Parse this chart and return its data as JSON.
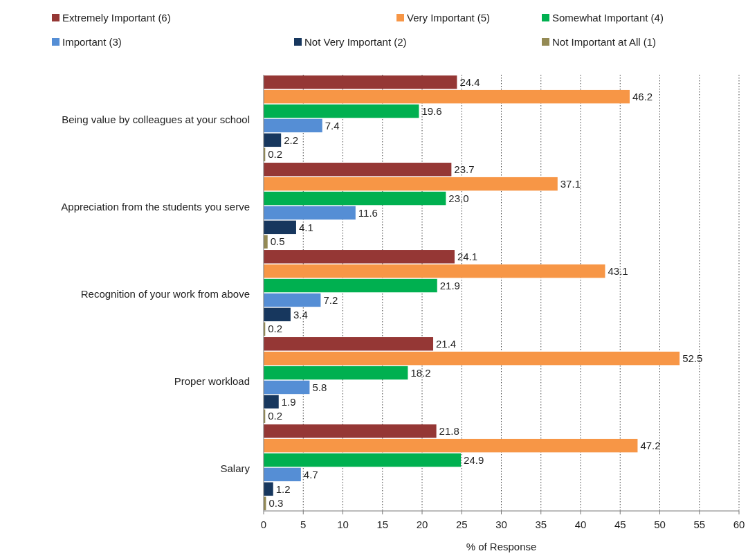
{
  "chart_data": {
    "type": "bar",
    "orientation": "horizontal",
    "xlabel": "% of Response",
    "categories": [
      "Being value by colleagues at your school",
      "Appreciation from the students you serve",
      "Recognition of your work from above",
      "Proper workload",
      "Salary"
    ],
    "series": [
      {
        "name": "Extremely Important (6)",
        "color": "#953735",
        "values": [
          24.4,
          23.7,
          24.1,
          21.4,
          21.8
        ],
        "value_labels": [
          "24.4",
          "23.7",
          "24.1",
          "21.4",
          "21.8"
        ]
      },
      {
        "name": "Very Important (5)",
        "color": "#f79646",
        "values": [
          46.2,
          37.1,
          43.1,
          52.5,
          47.2
        ],
        "value_labels": [
          "46.2",
          "37.1",
          "43.1",
          "52.5",
          "47.2"
        ]
      },
      {
        "name": "Somewhat Important (4)",
        "color": "#00b050",
        "values": [
          19.6,
          23.0,
          21.9,
          18.2,
          24.9
        ],
        "value_labels": [
          "19.6",
          "23.0",
          "21.9",
          "18.2",
          "24.9"
        ]
      },
      {
        "name": "Important (3)",
        "color": "#558ed5",
        "values": [
          7.4,
          11.6,
          7.2,
          5.8,
          4.7
        ],
        "value_labels": [
          "7.4",
          "11.6",
          "7.2",
          "5.8",
          "4.7"
        ]
      },
      {
        "name": "Not Very Important (2)",
        "color": "#17375e",
        "values": [
          2.2,
          4.1,
          3.4,
          1.9,
          1.2
        ],
        "value_labels": [
          "2.2",
          "4.1",
          "3.4",
          "1.9",
          "1.2"
        ]
      },
      {
        "name": "Not Important at All (1)",
        "color": "#948a54",
        "values": [
          0.2,
          0.5,
          0.2,
          0.2,
          0.3
        ],
        "value_labels": [
          "0.2",
          "0.5",
          "0.2",
          "0.2",
          "0.3"
        ]
      }
    ],
    "xlim": [
      0,
      60
    ],
    "xticks": [
      0,
      5,
      10,
      15,
      20,
      25,
      30,
      35,
      40,
      45,
      50,
      55,
      60
    ],
    "grid": "x",
    "legend": "top"
  }
}
